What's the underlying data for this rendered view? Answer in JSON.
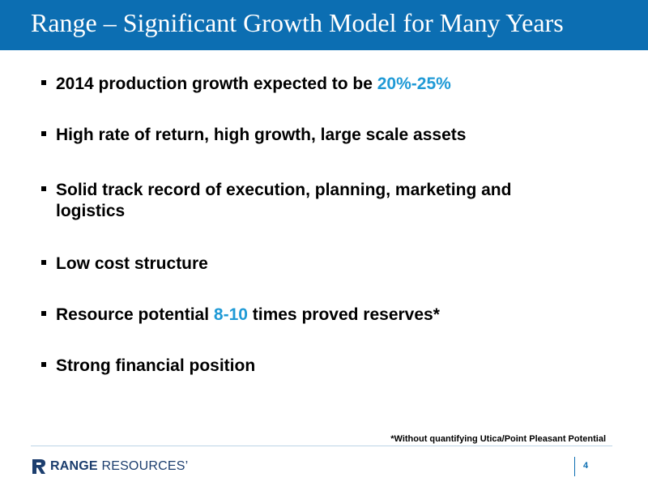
{
  "slide": {
    "title": "Range – Significant Growth Model for Many Years",
    "page_number": "4"
  },
  "bullets": [
    {
      "text_1": "2014 production growth expected to be ",
      "highlight": "20%-25%",
      "text_2": ""
    },
    {
      "text_1": "High rate of return, high growth, large scale assets",
      "highlight": "",
      "text_2": ""
    },
    {
      "text_1": "Solid track record of execution, planning, marketing and logistics",
      "highlight": "",
      "text_2": ""
    },
    {
      "text_1": "Low cost structure",
      "highlight": "",
      "text_2": ""
    },
    {
      "text_1": "Resource potential ",
      "highlight": "8-10",
      "text_2": " times proved reserves*"
    },
    {
      "text_1": "Strong financial position",
      "highlight": "",
      "text_2": ""
    }
  ],
  "footnote": "*Without quantifying Utica/Point Pleasant Potential",
  "logo": {
    "word_1": "RANGE",
    "word_2": "RESOURCES",
    "mark": "’"
  },
  "colors": {
    "title_bar": "#0c6eb2",
    "accent": "#1f9ad6",
    "logo": "#1c3e6e"
  }
}
